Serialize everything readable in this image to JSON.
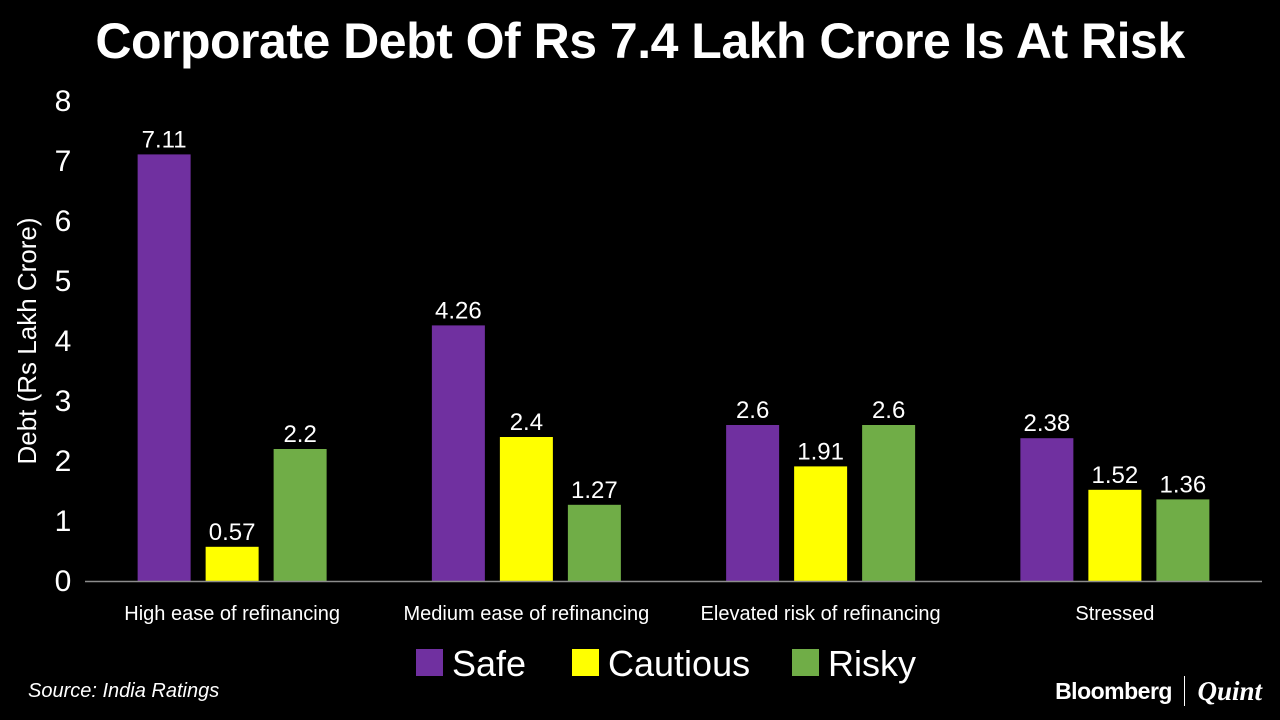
{
  "chart_data": {
    "type": "bar",
    "title": "Corporate Debt Of Rs 7.4 Lakh Crore Is At Risk",
    "ylabel": "Debt (Rs Lakh Crore)",
    "xlabel": "",
    "ylim": [
      0,
      8
    ],
    "yticks": [
      "0",
      "1",
      "2",
      "3",
      "4",
      "5",
      "6",
      "7",
      "8"
    ],
    "grid": false,
    "legend_position": "bottom",
    "categories": [
      "High ease of refinancing",
      "Medium ease of refinancing",
      "Elevated risk of refinancing",
      "Stressed"
    ],
    "series": [
      {
        "name": "Safe",
        "color": "#7030A0",
        "values": [
          7.11,
          4.26,
          2.6,
          2.38
        ],
        "labels": [
          "7.11",
          "4.26",
          "2.6",
          "2.38"
        ]
      },
      {
        "name": "Cautious",
        "color": "#FFFF00",
        "values": [
          0.57,
          2.4,
          1.91,
          1.52
        ],
        "labels": [
          "0.57",
          "2.4",
          "1.91",
          "1.52"
        ]
      },
      {
        "name": "Risky",
        "color": "#70AD47",
        "values": [
          2.2,
          1.27,
          2.6,
          1.36
        ],
        "labels": [
          "2.2",
          "1.27",
          "2.6",
          "1.36"
        ]
      }
    ]
  },
  "footer": {
    "source": "Source: India Ratings",
    "brand_primary": "Bloomberg",
    "brand_secondary": "Quint"
  }
}
